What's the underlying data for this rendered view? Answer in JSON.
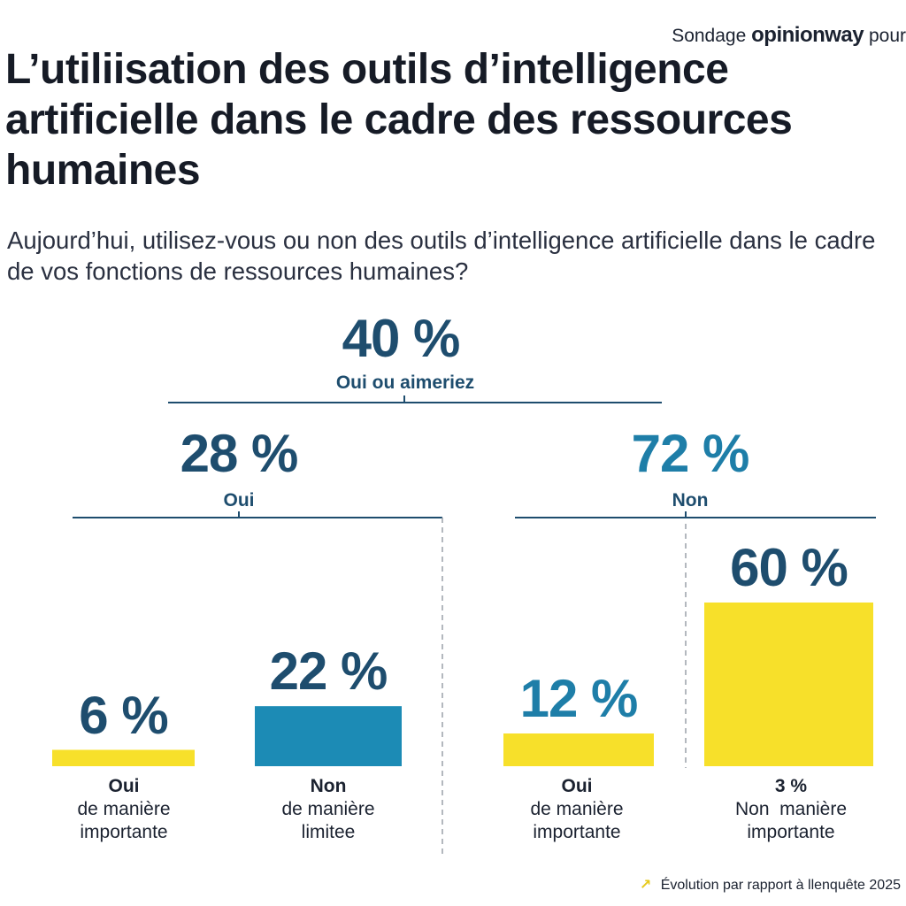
{
  "header": {
    "source_prefix": "Sondage",
    "source_brand": "opinionway",
    "source_suffix": "pour"
  },
  "title": "L’utiliisation des outils d’intelligence artificielle dans le cadre des ressources humaines",
  "question": "Aujourd’hui, utilisez-vous ou non des outils d’intelligence artificielle dans le cadre de vos fonctions de ressources humaines?",
  "colors": {
    "navy": "#1e4d6e",
    "teal": "#1e7ea8",
    "yellow": "#f7e02a",
    "blue_bar": "#1c8bb5",
    "line": "#1e4d6e",
    "dashed": "#9aa0a8"
  },
  "chart_data": {
    "type": "bar",
    "tree": {
      "total": {
        "value": 40,
        "display": "40 %",
        "label": "Oui ou aimeriez"
      },
      "branches": [
        {
          "value": 28,
          "display": "28 %",
          "label": "Oui"
        },
        {
          "value": 72,
          "display": "72 %",
          "label": "Non"
        }
      ]
    },
    "bars": [
      {
        "value": 6,
        "display": "6 %",
        "label_strong": "Oui",
        "label_rest": [
          "de manière",
          "importante"
        ],
        "color": "#f7e02a",
        "value_color": "#1e4d6e"
      },
      {
        "value": 22,
        "display": "22 %",
        "label_strong": "Non",
        "label_rest": [
          "de manière",
          "limitee"
        ],
        "color": "#1c8bb5",
        "value_color": "#1e4d6e"
      },
      {
        "value": 12,
        "display": "12 %",
        "label_strong": "Oui",
        "label_rest": [
          "de manière",
          "importante"
        ],
        "color": "#f7e02a",
        "value_color": "#1e7ea8"
      },
      {
        "value": 60,
        "display": "60 %",
        "label_strong": "3 %",
        "label_rest": [
          "Non  manière",
          "importante"
        ],
        "color": "#f7e02a",
        "value_color": "#1e4d6e"
      }
    ]
  },
  "footer": {
    "arrow": "↗",
    "text": "Évolution par rapport à llenquête 2025"
  }
}
